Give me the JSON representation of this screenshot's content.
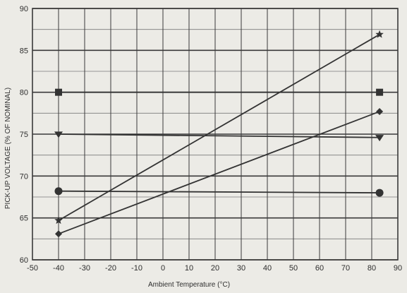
{
  "chart_data": {
    "type": "line",
    "title": "",
    "xlabel": "Ambient Temperature (°C)",
    "ylabel": "PICK-UP VOLTAGE (% OF NOMINAL)",
    "xlim": [
      -50,
      90
    ],
    "ylim": [
      60,
      90
    ],
    "x_ticks": [
      "-50",
      "-40",
      "-30",
      "-20",
      "-10",
      "0",
      "10",
      "20",
      "30",
      "40",
      "50",
      "60",
      "70",
      "80",
      "90"
    ],
    "y_ticks": [
      "60",
      "65",
      "70",
      "75",
      "80",
      "85",
      "90"
    ],
    "x_tick_values": [
      -50,
      -40,
      -30,
      -20,
      -10,
      0,
      10,
      20,
      30,
      40,
      50,
      60,
      70,
      80,
      90
    ],
    "y_tick_values": [
      60,
      65,
      70,
      75,
      80,
      85,
      90
    ],
    "grid": true,
    "x_minor_step": 10,
    "y_minor_step": 2.5,
    "colors": {
      "line": "#333333",
      "grid_major": "#3a3a3a",
      "grid_minor": "#7a7a7a",
      "background": "#ecebe6"
    },
    "series": [
      {
        "marker": "star",
        "x": [
          -40,
          83
        ],
        "y": [
          64.7,
          86.9
        ]
      },
      {
        "marker": "square",
        "x": [
          -40,
          83
        ],
        "y": [
          80.0,
          80.0
        ]
      },
      {
        "marker": "diamond",
        "x": [
          -40,
          83
        ],
        "y": [
          63.1,
          77.7
        ]
      },
      {
        "marker": "triangle-down",
        "x": [
          -40,
          83
        ],
        "y": [
          75.0,
          74.6
        ]
      },
      {
        "marker": "circle",
        "x": [
          -40,
          83
        ],
        "y": [
          68.2,
          68.0
        ]
      }
    ]
  }
}
